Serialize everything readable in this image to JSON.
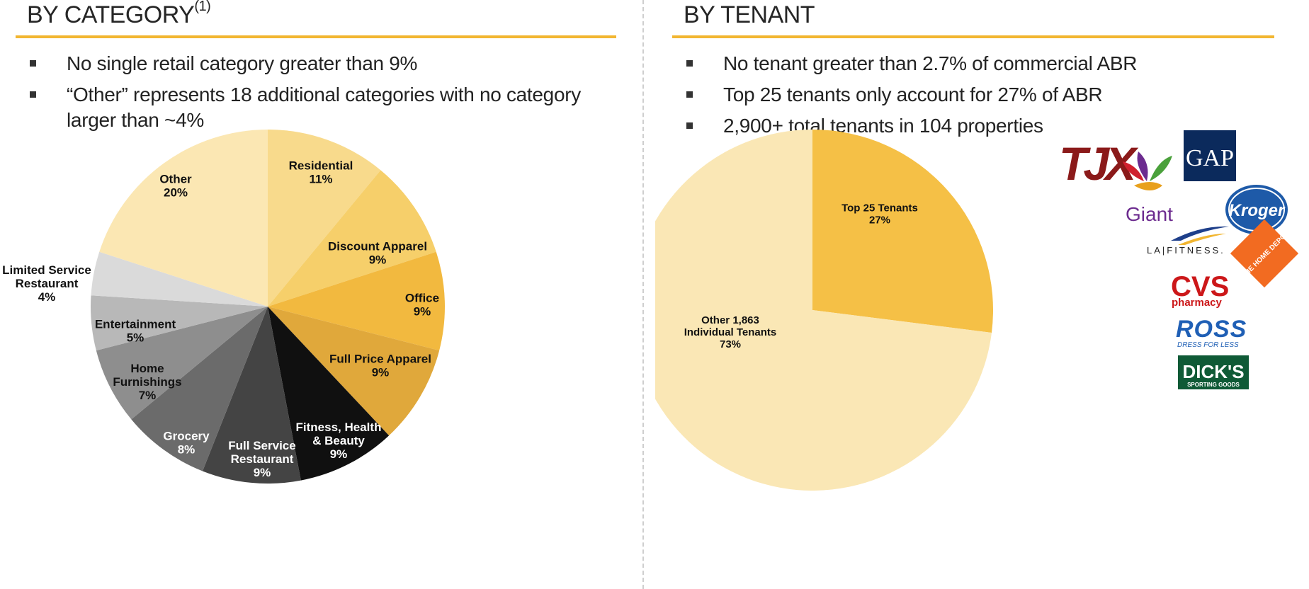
{
  "left": {
    "heading": "BY CATEGORY",
    "heading_sup": "(1)",
    "bullets": [
      "No single retail category greater than 9%",
      "“Other” represents 18 additional categories with no category larger than ~4%"
    ]
  },
  "right": {
    "heading": "BY TENANT",
    "bullets": [
      "No tenant greater than 2.7% of commercial ABR",
      "Top 25 tenants only account for 27% of ABR",
      "2,900+ total tenants in 104 properties"
    ],
    "logos": [
      {
        "text": "TJX",
        "color": "#8b1a1a"
      },
      {
        "text": "GAP",
        "color": "#0b2a5c"
      },
      {
        "text": "Giant",
        "color": "#6c2b8f"
      },
      {
        "text": "Kroger",
        "color": "#1e5aa8"
      },
      {
        "text": "LA|FITNESS.",
        "color": "#222222"
      },
      {
        "text": "CVS",
        "color": "#cc1719"
      },
      {
        "text": "pharmacy",
        "color": "#cc1719"
      },
      {
        "text": "THE HOME DEPOT",
        "color": "#f26b21"
      },
      {
        "text": "ROSS",
        "color": "#1f5fb5"
      },
      {
        "text": "DRESS FOR LESS",
        "color": "#1f5fb5"
      },
      {
        "text": "DICK'S",
        "color": "#0f5a36"
      },
      {
        "text": "SPORTING GOODS",
        "color": "#0f5a36"
      }
    ]
  },
  "chart_data": [
    {
      "type": "pie",
      "slices": [
        {
          "label": "Residential",
          "value": 11,
          "display": "11%",
          "color": "#f8da8c"
        },
        {
          "label": "Discount Apparel",
          "value": 9,
          "display": "9%",
          "color": "#f6cf6a"
        },
        {
          "label": "Office",
          "value": 9,
          "display": "9%",
          "color": "#f2b93f"
        },
        {
          "label": "Full Price Apparel",
          "value": 9,
          "display": "9%",
          "color": "#e0a83b"
        },
        {
          "label": "Fitness, Health & Beauty",
          "value": 9,
          "display": "9%",
          "color": "#101010"
        },
        {
          "label": "Full Service Restaurant",
          "value": 9,
          "display": "9%",
          "color": "#444444"
        },
        {
          "label": "Grocery",
          "value": 8,
          "display": "8%",
          "color": "#6b6b6b"
        },
        {
          "label": "Home Furnishings",
          "value": 7,
          "display": "7%",
          "color": "#8e8e8e"
        },
        {
          "label": "Entertainment",
          "value": 5,
          "display": "5%",
          "color": "#b8b8b8"
        },
        {
          "label": "Limited Service Restaurant",
          "value": 4,
          "display": "4%",
          "color": "#dadada"
        },
        {
          "label": "Other",
          "value": 20,
          "display": "20%",
          "color": "#fbe7b3"
        }
      ]
    },
    {
      "type": "pie",
      "slices": [
        {
          "label": "Top 25 Tenants",
          "value": 27,
          "display": "27%",
          "color": "#f5c046"
        },
        {
          "label": "Other 1,863 Individual Tenants",
          "value": 73,
          "display": "73%",
          "color": "#fae7b5"
        }
      ]
    }
  ]
}
